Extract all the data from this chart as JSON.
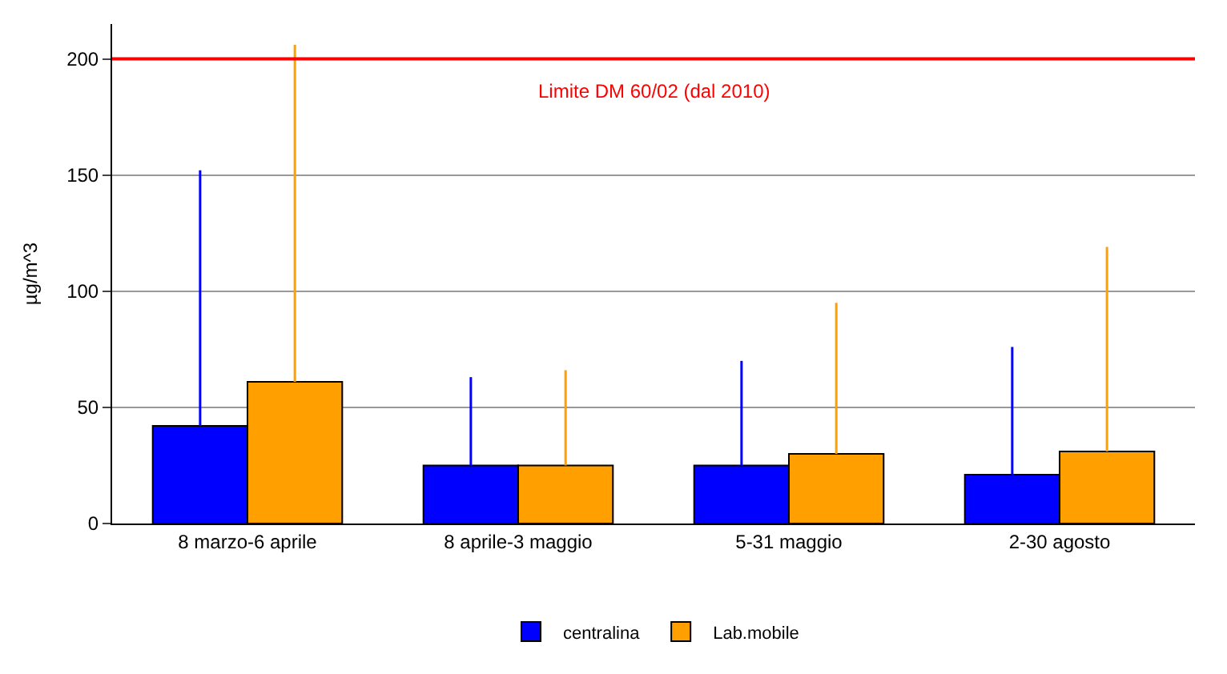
{
  "chart_data": {
    "type": "bar",
    "ylabel": "µg/m^3",
    "categories": [
      "8 marzo-6 aprile",
      "8 aprile-3 maggio",
      "5-31 maggio",
      "2-30 agosto"
    ],
    "series": [
      {
        "name": "centralina",
        "color": "#0000ff",
        "values": [
          42,
          25,
          25,
          21
        ],
        "errors": [
          [
            42,
            152
          ],
          [
            25,
            63
          ],
          [
            25,
            70
          ],
          [
            21,
            76
          ]
        ]
      },
      {
        "name": "Lab.mobile",
        "color": "#ff9f00",
        "values": [
          61,
          25,
          30,
          31
        ],
        "errors": [
          [
            61,
            206
          ],
          [
            25,
            66
          ],
          [
            30,
            95
          ],
          [
            31,
            119
          ]
        ]
      }
    ],
    "ylim": [
      0,
      215
    ],
    "yticks": [
      0,
      50,
      100,
      150,
      200
    ],
    "grid": "y",
    "legend": "bottom",
    "ref_lines": [
      {
        "axis": "y",
        "value": 200,
        "label": "Limite DM 60/02 (dal 2010)",
        "color": "#ff0000"
      }
    ]
  }
}
